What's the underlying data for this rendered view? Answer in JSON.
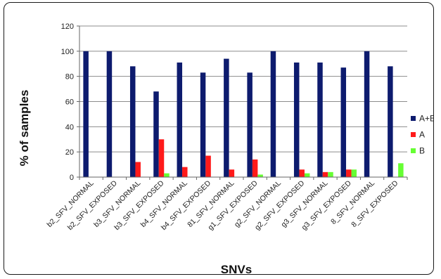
{
  "chart_data": {
    "type": "bar",
    "title": "",
    "xlabel": "SNVs",
    "ylabel": "% of samples",
    "ylim": [
      0,
      120
    ],
    "yticks": [
      "0",
      "20",
      "40",
      "60",
      "80",
      "100",
      "120"
    ],
    "grid": true,
    "legend_position": "right",
    "categories": [
      "b2_SFV_NORMAL",
      "b2_SFV_EXPOSED",
      "b3_SFV_NORMAL",
      "b3_SFV_EXPOSED",
      "b4_SFV_NORMAL",
      "b4_SFV_EXPOSED",
      "81_SFV_NORMAL",
      "g1_SFV_EXPOSED",
      "g2_SFV_NORMAL",
      "g2_SFV_EXPOSED",
      "g3_SFV_NORMAL",
      "g3_SFV_EXPOSED",
      "8_SFV_NORMAL",
      "8_SFV_EXPOSED"
    ],
    "series": [
      {
        "name": "A+B",
        "color": "#0d1b6e",
        "values": [
          100,
          100,
          88,
          68,
          91,
          83,
          94,
          83,
          100,
          91,
          91,
          87,
          100,
          88
        ]
      },
      {
        "name": "A",
        "color": "#ff1a1a",
        "values": [
          0,
          0,
          12,
          30,
          8,
          17,
          6,
          14,
          0,
          6,
          4,
          6,
          0,
          0
        ]
      },
      {
        "name": "B",
        "color": "#66ff33",
        "values": [
          0,
          0,
          0,
          3,
          0,
          0,
          0,
          2,
          0,
          3,
          4,
          6,
          0,
          11
        ]
      }
    ]
  }
}
